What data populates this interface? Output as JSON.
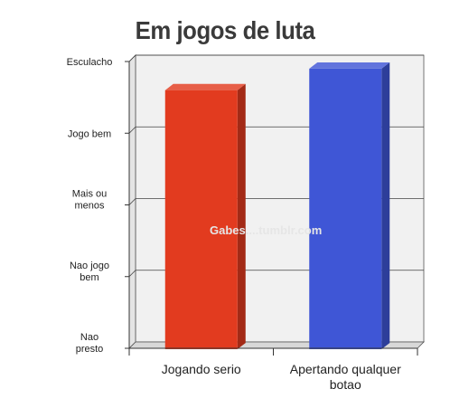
{
  "chart_data": {
    "type": "bar",
    "title": "Em jogos de luta",
    "categories": [
      "Jogando serio",
      "Apertando qualquer botao"
    ],
    "category_lines": [
      [
        "Jogando serio"
      ],
      [
        "Apertando qualquer",
        "botao"
      ]
    ],
    "values": [
      3.6,
      3.9
    ],
    "ylim": [
      0,
      4
    ],
    "yticks": [
      {
        "value": 4,
        "lines": [
          "Esculacho"
        ]
      },
      {
        "value": 3,
        "lines": [
          "Jogo bem"
        ]
      },
      {
        "value": 2,
        "lines": [
          "Mais ou",
          "menos"
        ]
      },
      {
        "value": 1,
        "lines": [
          "Nao jogo",
          "bem"
        ]
      },
      {
        "value": 0,
        "lines": [
          "Nao",
          "presto"
        ]
      }
    ],
    "bar_colors": [
      "#e23b1f",
      "#3f56d6"
    ],
    "grid": true,
    "xlabel": "",
    "ylabel": ""
  },
  "watermark": "Gabes....tumblr.com",
  "colors": {
    "plot_back": "#f1f1f1",
    "plot_side": "#e4e4e4",
    "grid": "#444444"
  }
}
